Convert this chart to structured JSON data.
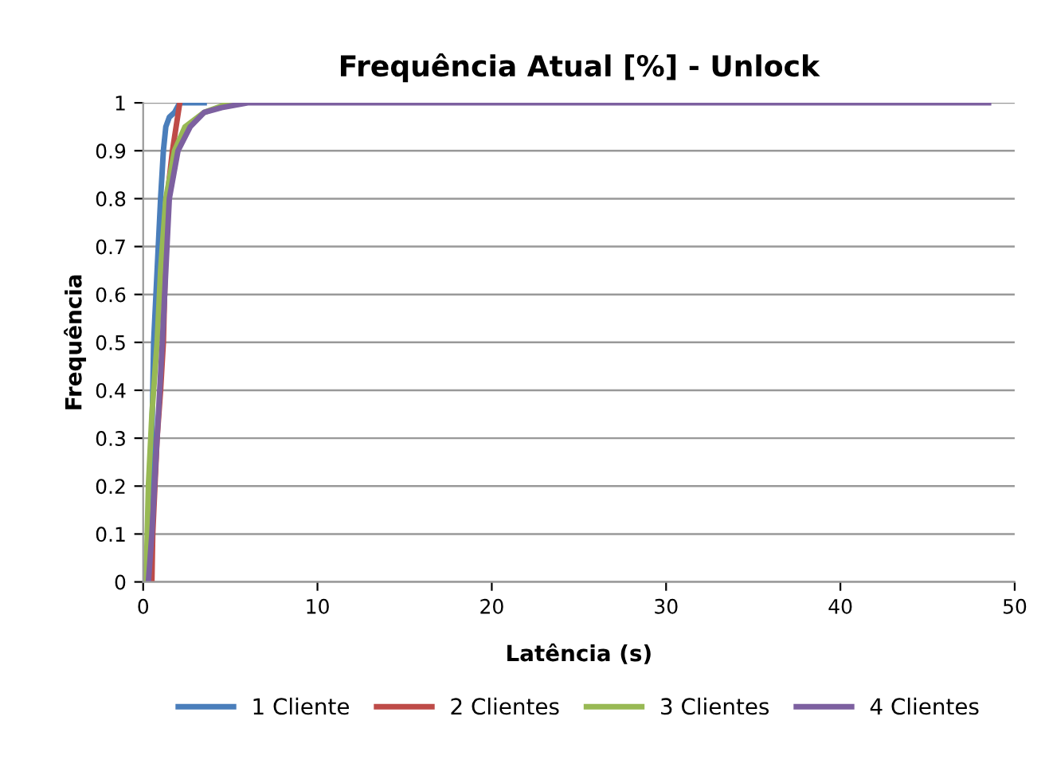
{
  "chart_data": {
    "type": "line",
    "title": "Frequência Atual [%] - Unlock",
    "xlabel": "Latência (s)",
    "ylabel": "Frequência",
    "xlim": [
      0,
      50
    ],
    "xticks": [
      0,
      10,
      20,
      30,
      40,
      50
    ],
    "ylim": [
      0,
      1
    ],
    "yticks": [
      0,
      0.1,
      0.2,
      0.3,
      0.4,
      0.5,
      0.6,
      0.7,
      0.8,
      0.9,
      1
    ],
    "grid": "y",
    "legend": "bottom",
    "marker": "none",
    "line_style": "solid",
    "series": [
      {
        "name": "1 Cliente",
        "color": "#4a7ebb",
        "x": [
          0.3,
          0.4,
          0.5,
          0.6,
          0.8,
          1.0,
          1.16,
          1.3,
          1.5,
          1.8,
          2.1,
          3.5
        ],
        "values": [
          0.0,
          0.1,
          0.3,
          0.5,
          0.65,
          0.8,
          0.9,
          0.95,
          0.97,
          0.98,
          1.0,
          1.0
        ]
      },
      {
        "name": "2 Clientes",
        "color": "#be4b48",
        "x": [
          0.5,
          0.55,
          0.8,
          1.0,
          1.16,
          1.37,
          1.68,
          2.1
        ],
        "values": [
          0.0,
          0.1,
          0.3,
          0.4,
          0.5,
          0.8,
          0.9,
          1.0
        ]
      },
      {
        "name": "3 Clientes",
        "color": "#98b954",
        "x": [
          0.1,
          0.2,
          0.3,
          0.5,
          0.8,
          1.0,
          1.3,
          1.8,
          2.4,
          3.5,
          5.0
        ],
        "values": [
          0.0,
          0.05,
          0.2,
          0.35,
          0.5,
          0.65,
          0.8,
          0.9,
          0.95,
          0.98,
          1.0
        ]
      },
      {
        "name": "4 Clientes",
        "color": "#7d60a0",
        "x": [
          0.3,
          0.5,
          0.8,
          1.1,
          1.3,
          1.5,
          2.0,
          2.7,
          3.5,
          4.5,
          6.0,
          48.5
        ],
        "values": [
          0.0,
          0.1,
          0.3,
          0.5,
          0.65,
          0.8,
          0.9,
          0.95,
          0.98,
          0.99,
          1.0,
          1.0
        ]
      }
    ]
  }
}
